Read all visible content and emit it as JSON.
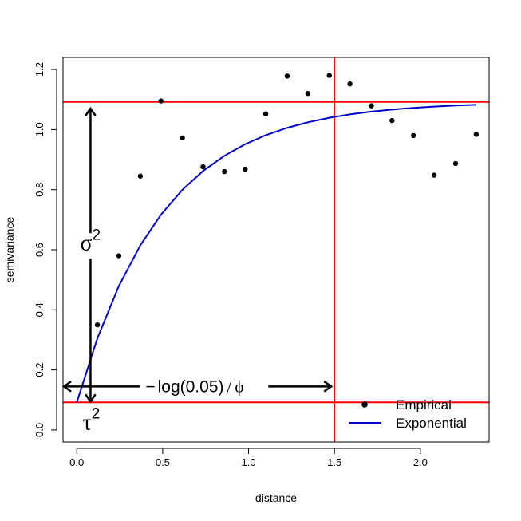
{
  "chart_data": {
    "type": "scatter",
    "xlabel": "distance",
    "ylabel": "semivariance",
    "xlim": [
      -0.08,
      2.4
    ],
    "ylim": [
      -0.04,
      1.24
    ],
    "xticks": [
      0.0,
      0.5,
      1.0,
      1.5,
      2.0
    ],
    "xtick_labels": [
      "0.0",
      "0.5",
      "1.0",
      "1.5",
      "2.0"
    ],
    "yticks": [
      0.0,
      0.2,
      0.4,
      0.6,
      0.8,
      1.0,
      1.2
    ],
    "ytick_labels": [
      "0.0",
      "0.2",
      "0.4",
      "0.6",
      "0.8",
      "1.0",
      "1.2"
    ],
    "series": [
      {
        "name": "Empirical",
        "kind": "points",
        "color": "#000000",
        "points": [
          [
            0.12,
            0.35
          ],
          [
            0.245,
            0.58
          ],
          [
            0.37,
            0.845
          ],
          [
            0.49,
            1.095
          ],
          [
            0.615,
            0.972
          ],
          [
            0.735,
            0.876
          ],
          [
            0.86,
            0.86
          ],
          [
            0.98,
            0.868
          ],
          [
            1.1,
            1.052
          ],
          [
            1.225,
            1.178
          ],
          [
            1.345,
            1.12
          ],
          [
            1.47,
            1.18
          ],
          [
            1.59,
            1.152
          ],
          [
            1.715,
            1.079
          ],
          [
            1.835,
            1.03
          ],
          [
            1.96,
            0.98
          ],
          [
            2.08,
            0.848
          ],
          [
            2.205,
            0.887
          ],
          [
            2.325,
            0.984
          ]
        ]
      },
      {
        "name": "Exponential",
        "kind": "line",
        "color": "#0000cd",
        "model": {
          "nugget": 0.092,
          "sill": 1.092,
          "range": 1.5
        },
        "x": [
          0.0,
          0.12,
          0.245,
          0.37,
          0.49,
          0.615,
          0.735,
          0.86,
          0.98,
          1.1,
          1.225,
          1.345,
          1.47,
          1.59,
          1.715,
          1.835,
          1.96,
          2.08,
          2.205,
          2.325
        ]
      }
    ],
    "reference_lines": {
      "color": "#ff0000",
      "horizontal": [
        1.092,
        0.092
      ],
      "vertical": [
        1.5
      ]
    },
    "annotations": {
      "sigma_label": {
        "symbol": "σ",
        "superscript": "2",
        "x": 0.08,
        "y": 0.62
      },
      "tau_label": {
        "symbol": "τ",
        "superscript": "2",
        "x": 0.08,
        "y": 0.025
      },
      "range_label": {
        "minus": "−",
        "text": "log(0.05)",
        "slash": "/",
        "phi": "ϕ",
        "x": 0.82,
        "y": 0.145
      },
      "vertical_arrow": {
        "x": 0.08,
        "y_top": 1.07,
        "y_bottom": 0.095
      },
      "horizontal_arrow": {
        "y": 0.145,
        "x_left": -0.075,
        "x_right": 1.5
      }
    },
    "legend": {
      "position": "bottom-right",
      "entries": [
        {
          "label": "Empirical",
          "marker": "point"
        },
        {
          "label": "Exponential",
          "marker": "line"
        }
      ]
    }
  }
}
